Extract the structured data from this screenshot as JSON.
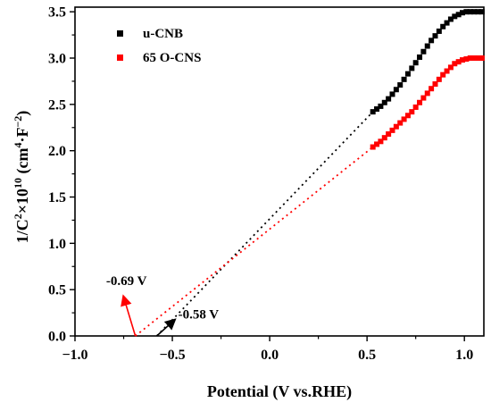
{
  "chart_data": {
    "type": "scatter",
    "xlabel": "Potential (V vs.RHE)",
    "ylabel": {
      "part1": "1/C",
      "sup1": "2",
      "part2": "×10",
      "sup2": "10",
      "part3": " (cm",
      "sup3": "4",
      "part4": "·F",
      "sup4": "−2",
      "part5": ")"
    },
    "xlim": [
      -1.0,
      1.1
    ],
    "ylim": [
      0.0,
      3.55
    ],
    "xticks": [
      -1.0,
      -0.5,
      0.0,
      0.5,
      1.0
    ],
    "xtick_labels": [
      "−1.0",
      "−0.5",
      "0.0",
      "0.5",
      "1.0"
    ],
    "yticks": [
      0.0,
      0.5,
      1.0,
      1.5,
      2.0,
      2.5,
      3.0,
      3.5
    ],
    "ytick_labels": [
      "0.0",
      "0.5",
      "1.0",
      "1.5",
      "2.0",
      "2.5",
      "3.0",
      "3.5"
    ],
    "legend_position": "top-left",
    "series": [
      {
        "name": "u-CNB",
        "color": "#000000",
        "x": [
          0.53,
          0.55,
          0.57,
          0.59,
          0.61,
          0.63,
          0.65,
          0.67,
          0.69,
          0.71,
          0.73,
          0.75,
          0.77,
          0.79,
          0.81,
          0.83,
          0.85,
          0.87,
          0.89,
          0.91,
          0.93,
          0.95,
          0.97,
          0.99,
          1.01,
          1.03,
          1.05,
          1.07,
          1.09
        ],
        "y": [
          2.42,
          2.45,
          2.48,
          2.52,
          2.56,
          2.61,
          2.66,
          2.71,
          2.77,
          2.83,
          2.89,
          2.95,
          3.01,
          3.07,
          3.13,
          3.19,
          3.24,
          3.29,
          3.34,
          3.38,
          3.42,
          3.45,
          3.47,
          3.49,
          3.5,
          3.5,
          3.5,
          3.5,
          3.5
        ]
      },
      {
        "name": "65 O-CNS",
        "color": "#ff0000",
        "x": [
          0.53,
          0.55,
          0.57,
          0.59,
          0.61,
          0.63,
          0.65,
          0.67,
          0.69,
          0.71,
          0.73,
          0.75,
          0.77,
          0.79,
          0.81,
          0.83,
          0.85,
          0.87,
          0.89,
          0.91,
          0.93,
          0.95,
          0.97,
          0.99,
          1.01,
          1.03,
          1.05,
          1.07,
          1.09
        ],
        "y": [
          2.04,
          2.07,
          2.1,
          2.14,
          2.18,
          2.22,
          2.26,
          2.3,
          2.34,
          2.38,
          2.42,
          2.47,
          2.52,
          2.57,
          2.62,
          2.67,
          2.72,
          2.77,
          2.82,
          2.86,
          2.9,
          2.94,
          2.96,
          2.98,
          2.99,
          3.0,
          3.0,
          3.0,
          3.0
        ]
      }
    ],
    "fit_lines": [
      {
        "series": "u-CNB",
        "color": "#000000",
        "x": [
          -0.58,
          0.53
        ],
        "y": [
          0.0,
          2.42
        ]
      },
      {
        "series": "65 O-CNS",
        "color": "#ff0000",
        "x": [
          -0.69,
          0.53
        ],
        "y": [
          0.0,
          2.04
        ]
      }
    ],
    "annotations": [
      {
        "text": "-0.69 V",
        "color": "#ff0000",
        "point": [
          -0.69,
          0.0
        ],
        "label_at": [
          -0.84,
          0.55
        ],
        "arrow_to": [
          -0.75,
          0.42
        ]
      },
      {
        "text": "-0.58 V",
        "color": "#000000",
        "point": [
          -0.58,
          0.0
        ],
        "label_at": [
          -0.47,
          0.19
        ],
        "arrow_to": [
          -0.49,
          0.17
        ]
      }
    ]
  }
}
